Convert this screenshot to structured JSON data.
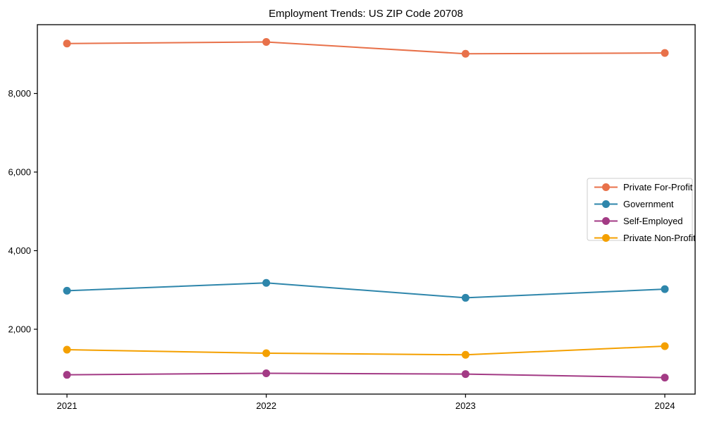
{
  "chart_data": {
    "type": "line",
    "title": "Employment Trends: US ZIP Code 20708",
    "x": [
      2021,
      2022,
      2023,
      2024
    ],
    "xtick_labels": [
      "2021",
      "2022",
      "2023",
      "2024"
    ],
    "yticks": [
      2000,
      4000,
      6000,
      8000
    ],
    "ytick_labels": [
      "2,000",
      "4,000",
      "6,000",
      "8,000"
    ],
    "ylim": [
      350,
      9750
    ],
    "grid": false,
    "legend_position": "center-right",
    "legend_entries": [
      "Private For-Profit",
      "Government",
      "Self-Employed",
      "Private Non-Profit"
    ],
    "series": [
      {
        "name": "Private For-Profit",
        "color": "#E8714A",
        "values": [
          9270,
          9310,
          9010,
          9030
        ]
      },
      {
        "name": "Government",
        "color": "#2E86AB",
        "values": [
          2980,
          3180,
          2800,
          3020
        ]
      },
      {
        "name": "Self-Employed",
        "color": "#A33B85",
        "values": [
          840,
          880,
          860,
          770
        ]
      },
      {
        "name": "Private Non-Profit",
        "color": "#F4A000",
        "values": [
          1480,
          1390,
          1350,
          1570
        ]
      }
    ]
  },
  "colors": {
    "axis": "#000000",
    "background": "#ffffff",
    "legend_border": "#cccccc",
    "legend_background": "#ffffff"
  }
}
